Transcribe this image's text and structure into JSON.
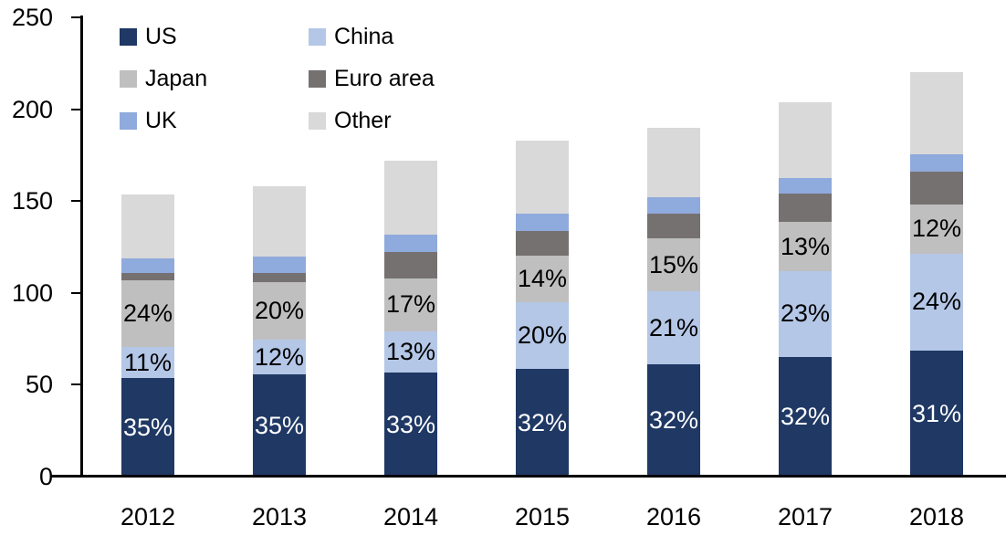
{
  "background": "#ffffff",
  "axis_color": "#000000",
  "chart_data": {
    "type": "bar",
    "stacked": true,
    "title": "",
    "xlabel": "",
    "ylabel": "",
    "gridlines": false,
    "legend_position": "top-left",
    "categories": [
      "2012",
      "2013",
      "2014",
      "2015",
      "2016",
      "2017",
      "2018"
    ],
    "y_axis": {
      "min": 0,
      "max": 250,
      "tick_step": 50,
      "ticks": [
        "0",
        "50",
        "100",
        "150",
        "200",
        "250"
      ]
    },
    "series": [
      {
        "name": "US",
        "color": "#1F3864",
        "values": [
          53.5,
          55.5,
          56.5,
          58.5,
          61.0,
          65.0,
          68.5
        ],
        "labels": [
          "35%",
          "35%",
          "33%",
          "32%",
          "32%",
          "32%",
          "31%"
        ],
        "label_color": "#ffffff"
      },
      {
        "name": "China",
        "color": "#B4C7E7",
        "values": [
          17.0,
          19.0,
          22.5,
          36.5,
          40.0,
          47.0,
          53.0
        ],
        "labels": [
          "11%",
          "12%",
          "13%",
          "20%",
          "21%",
          "23%",
          "24%"
        ],
        "label_color": "#000000"
      },
      {
        "name": "Japan",
        "color": "#BFBFBF",
        "values": [
          36.5,
          31.5,
          29.0,
          25.5,
          28.5,
          26.5,
          26.5
        ],
        "labels": [
          "24%",
          "20%",
          "17%",
          "14%",
          "15%",
          "13%",
          "12%"
        ],
        "label_color": "#000000"
      },
      {
        "name": "Euro area",
        "color": "#767171",
        "values": [
          4.0,
          5.0,
          14.5,
          13.0,
          13.5,
          15.5,
          18.0
        ],
        "labels": null,
        "label_color": null
      },
      {
        "name": "UK",
        "color": "#8FAADC",
        "values": [
          8.0,
          9.0,
          9.0,
          9.5,
          9.0,
          8.5,
          9.5
        ],
        "labels": null,
        "label_color": null
      },
      {
        "name": "Other",
        "color": "#D9D9D9",
        "values": [
          34.5,
          38.0,
          40.5,
          40.0,
          38.0,
          41.5,
          44.5
        ],
        "labels": null,
        "label_color": null
      }
    ],
    "totals": [
      153.5,
      158,
      172,
      183,
      190,
      204,
      220
    ]
  }
}
